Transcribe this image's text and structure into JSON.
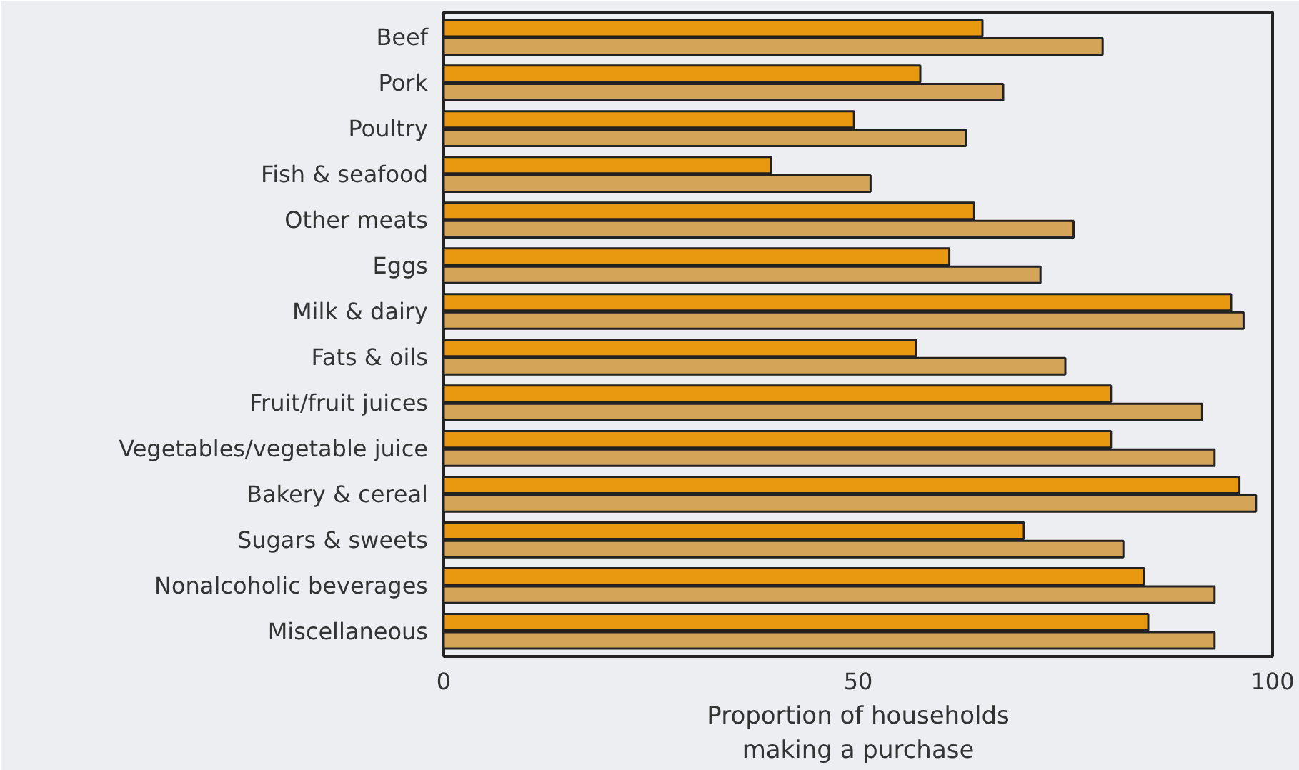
{
  "chart_data": {
    "type": "bar",
    "orientation": "horizontal",
    "xlabel": "Proportion of households\nmaking a purchase",
    "categories": [
      "Beef",
      "Pork",
      "Poultry",
      "Fish & seafood",
      "Other meats",
      "Eggs",
      "Milk & dairy",
      "Fats & oils",
      "Fruit/fruit juices",
      "Vegetables/vegetable juice",
      "Bakery & cereal",
      "Sugars & sweets",
      "Nonalcoholic beverages",
      "Miscellaneous"
    ],
    "series": [
      {
        "color": "#e8990f",
        "values": [
          65,
          57.5,
          49.5,
          39.5,
          64,
          61,
          95,
          57,
          80.5,
          80.5,
          96,
          70,
          84.5,
          85
        ]
      },
      {
        "color": "#d4a459",
        "values": [
          79.5,
          67.5,
          63,
          51.5,
          76,
          72,
          96.5,
          75,
          91.5,
          93,
          98,
          82,
          93,
          93
        ]
      }
    ],
    "xlim": [
      0,
      100
    ],
    "xticks": [
      0,
      50,
      100
    ],
    "grid": false
  }
}
